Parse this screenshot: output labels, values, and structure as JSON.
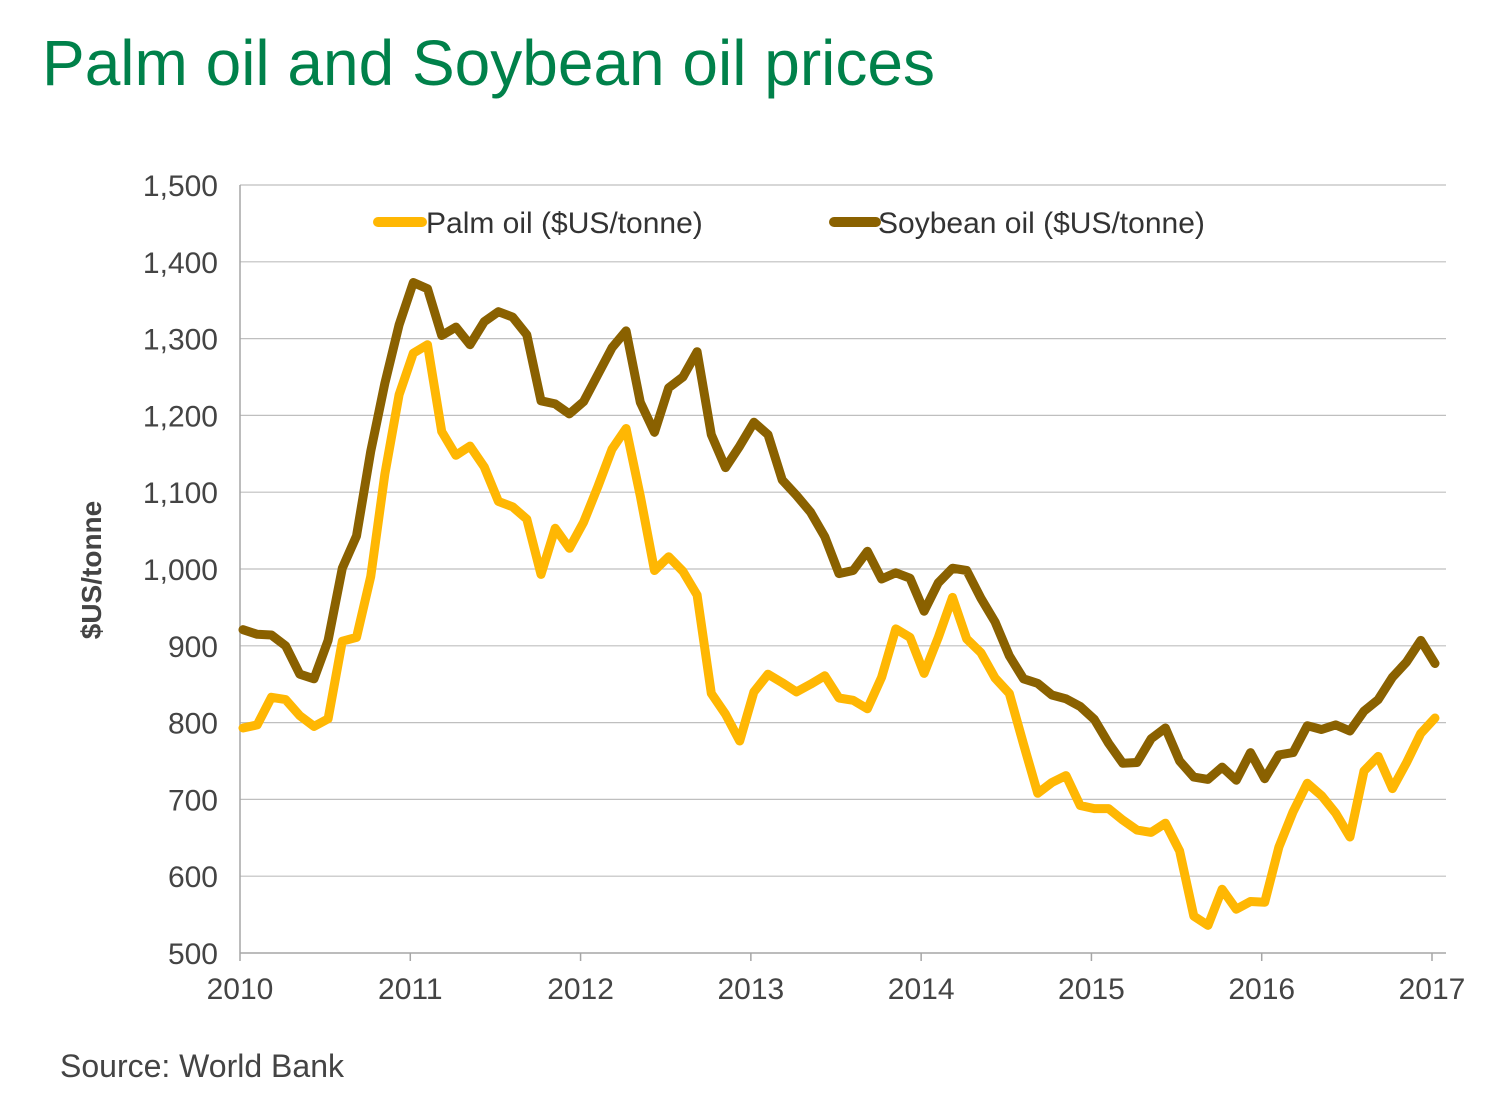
{
  "title": "Palm oil and Soybean oil prices",
  "source": "Source: World Bank",
  "chart_data": {
    "type": "line",
    "title": "Palm oil and Soybean oil prices",
    "xlabel": "",
    "ylabel": "$US/tonne",
    "ylim": [
      500,
      1500
    ],
    "xlim": [
      2010,
      2017.083
    ],
    "yticks": [
      500,
      600,
      700,
      800,
      900,
      1000,
      1100,
      1200,
      1300,
      1400,
      1500
    ],
    "ytick_labels": [
      "500",
      "600",
      "700",
      "800",
      "900",
      "1,000",
      "1,100",
      "1,200",
      "1,300",
      "1,400",
      "1,500"
    ],
    "xticks": [
      2010,
      2011,
      2012,
      2013,
      2014,
      2015,
      2016,
      2017
    ],
    "xtick_labels": [
      "2010",
      "2011",
      "2012",
      "2013",
      "2014",
      "2015",
      "2016",
      "2017"
    ],
    "grid": "horizontal",
    "legend_position": "top",
    "frequency": "monthly",
    "x_start": "2010-01",
    "x_end": "2017-02",
    "series": [
      {
        "name": "Palm oil ($US/tonne)",
        "color": "#ffb703",
        "values": [
          793,
          797,
          833,
          830,
          809,
          795,
          805,
          906,
          911,
          990,
          1124,
          1227,
          1281,
          1292,
          1179,
          1148,
          1160,
          1133,
          1088,
          1081,
          1065,
          993,
          1053,
          1027,
          1061,
          1107,
          1156,
          1183,
          1095,
          998,
          1016,
          997,
          966,
          838,
          811,
          776,
          840,
          863,
          852,
          840,
          850,
          861,
          832,
          829,
          818,
          859,
          922,
          911,
          864,
          911,
          963,
          909,
          891,
          858,
          838,
          772,
          708,
          722,
          731,
          692,
          688,
          688,
          673,
          660,
          657,
          669,
          633,
          548,
          536,
          583,
          557,
          567,
          566,
          638,
          684,
          721,
          705,
          682,
          651,
          737,
          756,
          714,
          748,
          786,
          806
        ]
      },
      {
        "name": "Soybean oil ($US/tonne)",
        "color": "#8a6100",
        "values": [
          921,
          915,
          914,
          900,
          863,
          857,
          907,
          1001,
          1043,
          1153,
          1242,
          1318,
          1373,
          1365,
          1304,
          1315,
          1292,
          1322,
          1335,
          1328,
          1305,
          1219,
          1215,
          1202,
          1218,
          1253,
          1288,
          1310,
          1217,
          1178,
          1236,
          1250,
          1283,
          1175,
          1132,
          1160,
          1191,
          1175,
          1116,
          1096,
          1074,
          1042,
          994,
          998,
          1023,
          987,
          995,
          988,
          945,
          982,
          1001,
          998,
          962,
          931,
          887,
          857,
          851,
          836,
          831,
          821,
          804,
          773,
          747,
          748,
          779,
          793,
          750,
          729,
          726,
          742,
          725,
          761,
          727,
          758,
          761,
          796,
          791,
          797,
          789,
          815,
          830,
          859,
          879,
          907,
          877
        ]
      }
    ]
  }
}
